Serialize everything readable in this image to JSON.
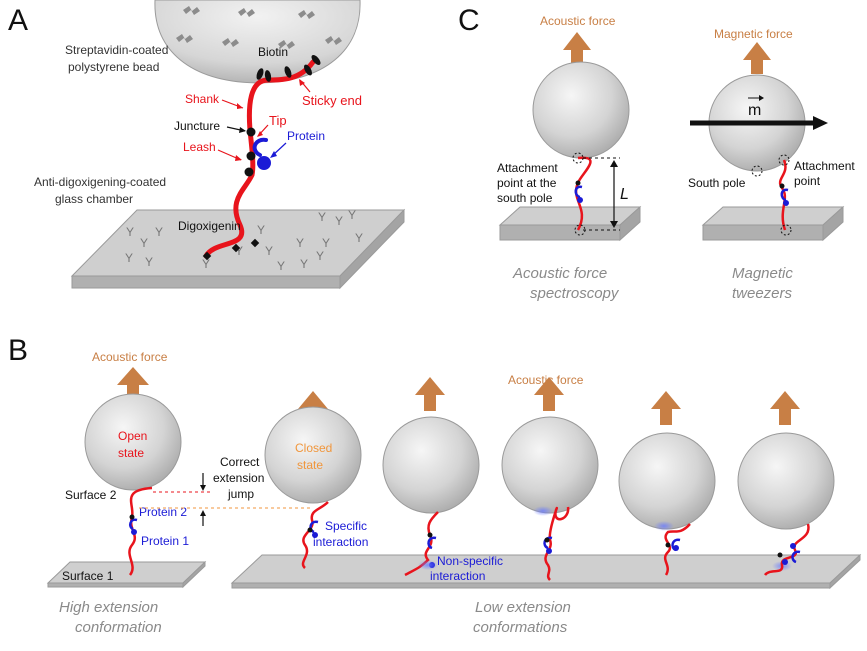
{
  "panels": {
    "a": "A",
    "b": "B",
    "c": "C"
  },
  "panel_a": {
    "bead": "Streptavidin-coated polystyrene bead",
    "bead_line1": "Streptavidin-coated",
    "bead_line2": "polystyrene bead",
    "biotin": "Biotin",
    "shank": "Shank",
    "sticky_end": "Sticky end",
    "tip": "Tip",
    "juncture": "Juncture",
    "protein": "Protein",
    "leash": "Leash",
    "chamber_line1": "Anti-digoxigening-coated",
    "chamber_line2": "glass chamber",
    "digoxigenin": "Digoxigenin",
    "antibody_glyph": "Y"
  },
  "panel_c": {
    "afs_force": "Acoustic force",
    "mt_force": "Magnetic force",
    "afs_attach_1": "Attachment",
    "afs_attach_2": "point at the",
    "afs_attach_3": "south pole",
    "length_symbol": "L",
    "moment_symbol": "m",
    "south_pole": "South pole",
    "mt_attach_1": "Attachment",
    "mt_attach_2": "point",
    "afs_caption_1": "Acoustic force",
    "afs_caption_2": "spectroscopy",
    "mt_caption_1": "Magnetic",
    "mt_caption_2": "tweezers"
  },
  "panel_b": {
    "force_left": "Acoustic force",
    "force_right": "Acoustic force",
    "open_1": "Open",
    "open_2": "state",
    "closed_1": "Closed",
    "closed_2": "state",
    "correct_1": "Correct",
    "correct_2": "extension",
    "correct_3": "jump",
    "surface2": "Surface 2",
    "surface1": "Surface 1",
    "protein2": "Protein 2",
    "protein1": "Protein 1",
    "specific_1": "Specific",
    "specific_2": "interaction",
    "nonspecific_1": "Non-specific",
    "nonspecific_2": "interaction",
    "high_1": "High extension",
    "high_2": "conformation",
    "low_1": "Low extension",
    "low_2": "conformations"
  },
  "colors": {
    "tether": "#e8141c",
    "protein": "#1b1bd6",
    "arrow": "#c87f45",
    "open_state": "#e8141c",
    "closed_state": "#f0963c",
    "caption_gray": "#8a8a8a",
    "dashed_orange": "#f0963c"
  }
}
